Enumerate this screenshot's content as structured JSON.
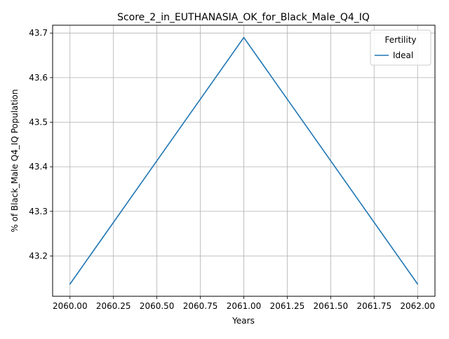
{
  "chart_data": {
    "type": "line",
    "title": "Score_2_in_EUTHANASIA_OK_for_Black_Male_Q4_IQ",
    "xlabel": "Years",
    "ylabel": "% of Black_Male Q4_IQ Population",
    "x": [
      2060,
      2061,
      2062
    ],
    "series": [
      {
        "name": "Ideal",
        "values": [
          43.137,
          43.69,
          43.137
        ],
        "color": "#1f77b4"
      }
    ],
    "xlim": [
      2059.9,
      2062.1
    ],
    "ylim": [
      43.1095,
      43.7176
    ],
    "xticks": [
      2060.0,
      2060.25,
      2060.5,
      2060.75,
      2061.0,
      2061.25,
      2061.5,
      2061.75,
      2062.0
    ],
    "xtick_labels": [
      "2060.00",
      "2060.25",
      "2060.50",
      "2060.75",
      "2061.00",
      "2061.25",
      "2061.50",
      "2061.75",
      "2062.00"
    ],
    "yticks": [
      43.2,
      43.3,
      43.4,
      43.5,
      43.6,
      43.7
    ],
    "ytick_labels": [
      "43.2",
      "43.3",
      "43.4",
      "43.5",
      "43.6",
      "43.7"
    ],
    "grid": true,
    "legend": {
      "title": "Fertility",
      "position": "top-right"
    }
  }
}
